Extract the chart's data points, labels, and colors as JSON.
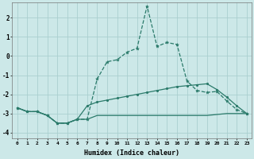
{
  "xlabel": "Humidex (Indice chaleur)",
  "x": [
    0,
    1,
    2,
    3,
    4,
    5,
    6,
    7,
    8,
    9,
    10,
    11,
    12,
    13,
    14,
    15,
    16,
    17,
    18,
    19,
    20,
    21,
    22,
    23
  ],
  "line1": [
    -2.7,
    -2.9,
    -2.9,
    -3.1,
    -3.5,
    -3.5,
    -3.3,
    -3.3,
    -1.2,
    -0.3,
    -0.2,
    0.2,
    0.4,
    2.6,
    0.5,
    0.7,
    0.6,
    -1.3,
    -1.8,
    -1.9,
    -1.85,
    -2.35,
    -2.8,
    -3.0
  ],
  "line2": [
    -2.7,
    -2.9,
    -2.9,
    -3.1,
    -3.5,
    -3.5,
    -3.3,
    -2.6,
    -2.4,
    -2.3,
    -2.2,
    -2.1,
    -2.0,
    -1.9,
    -1.8,
    -1.7,
    -1.6,
    -1.55,
    -1.5,
    -1.45,
    -1.75,
    -2.15,
    -2.6,
    -3.0
  ],
  "line3": [
    -2.7,
    -2.9,
    -2.9,
    -3.1,
    -3.5,
    -3.5,
    -3.3,
    -3.3,
    -3.1,
    -3.1,
    -3.1,
    -3.1,
    -3.1,
    -3.1,
    -3.1,
    -3.1,
    -3.1,
    -3.1,
    -3.1,
    -3.1,
    -3.05,
    -3.0,
    -3.0,
    -3.0
  ],
  "line_color": "#2a7a6a",
  "bg_color": "#cce8e8",
  "grid_color": "#aacfcf",
  "ylim": [
    -4.3,
    2.8
  ],
  "yticks": [
    -4,
    -3,
    -2,
    -1,
    0,
    1,
    2
  ],
  "xticks": [
    0,
    1,
    2,
    3,
    4,
    5,
    6,
    7,
    8,
    9,
    10,
    11,
    12,
    13,
    14,
    15,
    16,
    17,
    18,
    19,
    20,
    21,
    22,
    23
  ]
}
